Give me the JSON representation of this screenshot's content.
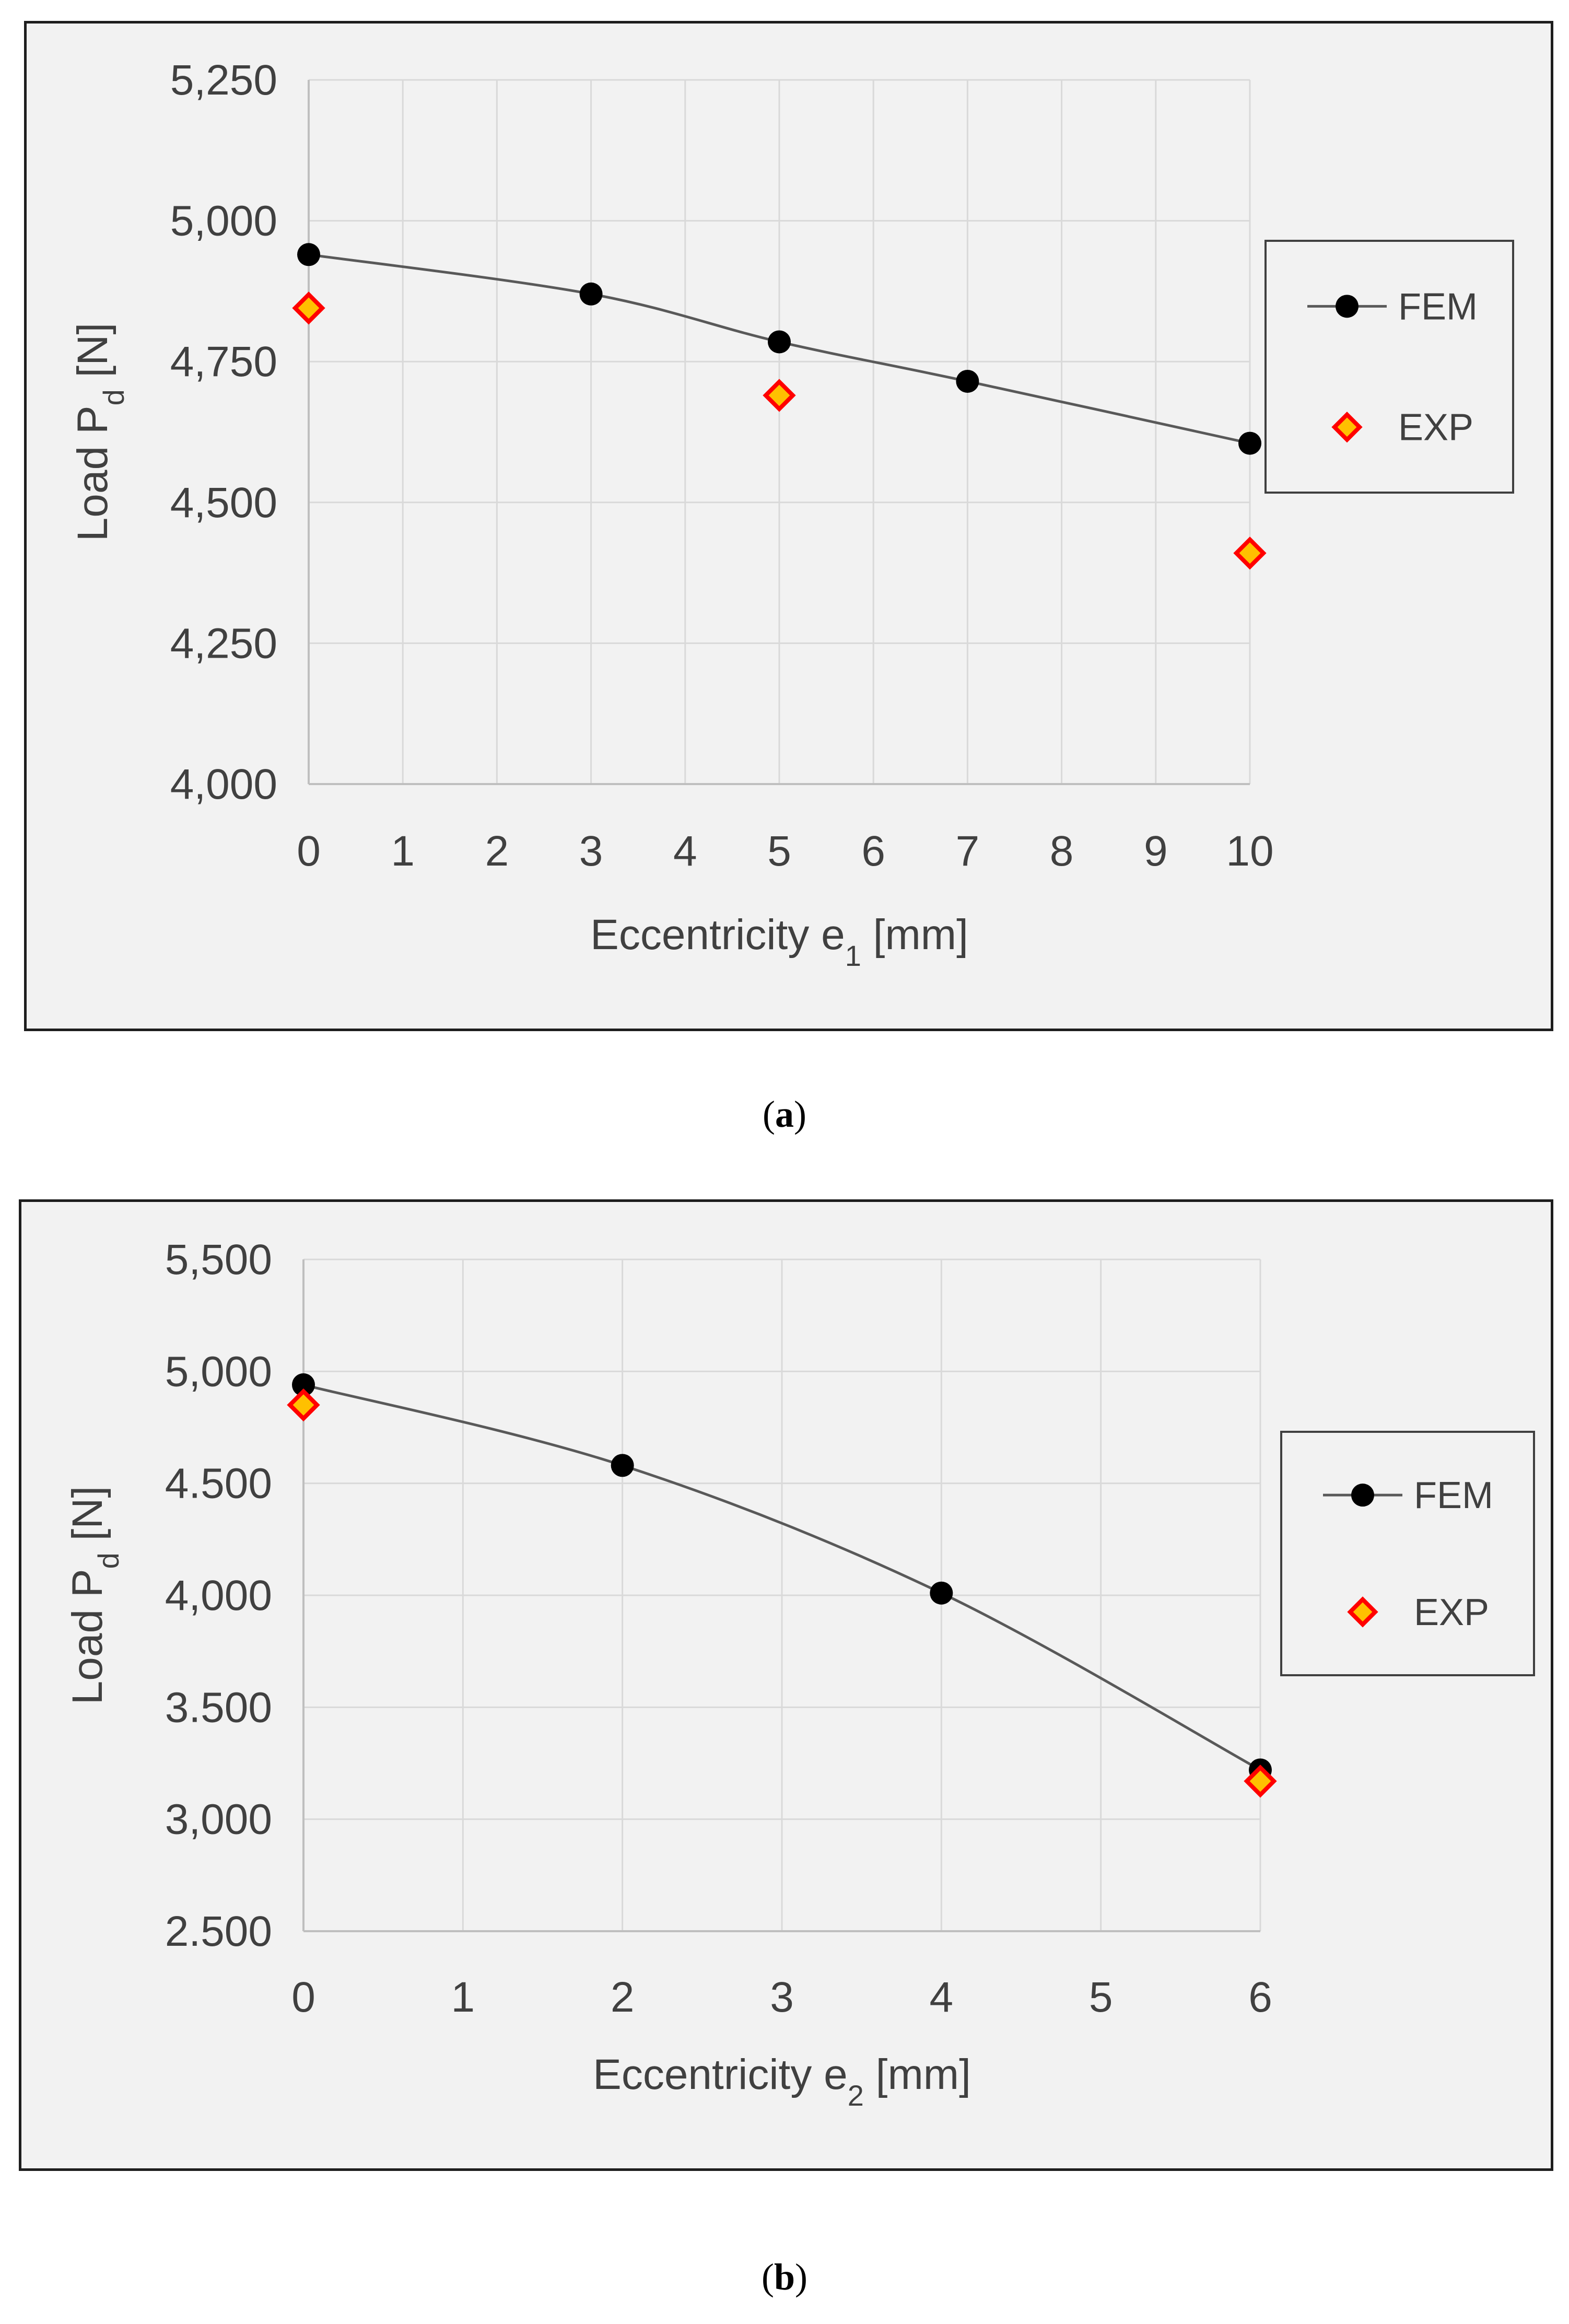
{
  "colors": {
    "fem_marker": "#000000",
    "fem_line": "#595959",
    "exp_fill": "#ffc000",
    "exp_stroke": "#ff0000",
    "grid": "#d9d9d9",
    "axis": "#bfbfbf",
    "text": "#404040"
  },
  "captions": {
    "a": {
      "open": "(",
      "letter": "a",
      "close": ")"
    },
    "b": {
      "open": "(",
      "letter": "b",
      "close": ")"
    }
  },
  "chart_data": [
    {
      "id": "a",
      "type": "scatter",
      "xlabel": {
        "main": "Eccentricity e",
        "sub": "1",
        "unit": " [mm]"
      },
      "ylabel": {
        "main": "Load P",
        "sub": "d",
        "unit": " [N]"
      },
      "xlim": [
        0,
        10
      ],
      "ylim": [
        4000,
        5250
      ],
      "x_ticks": [
        0,
        1,
        2,
        3,
        4,
        5,
        6,
        7,
        8,
        9,
        10
      ],
      "x_tick_labels": [
        "0",
        "1",
        "2",
        "3",
        "4",
        "5",
        "6",
        "7",
        "8",
        "9",
        "10"
      ],
      "y_ticks": [
        4000,
        4250,
        4500,
        4750,
        5000,
        5250
      ],
      "y_tick_labels": [
        "4,000",
        "4,250",
        "4,500",
        "4,750",
        "5,000",
        "5,250"
      ],
      "grid": true,
      "legend_position": "right",
      "series": [
        {
          "name": "FEM",
          "marker": "circle",
          "line": "smooth",
          "x": [
            0,
            3,
            5,
            7,
            10
          ],
          "y": [
            4940,
            4870,
            4785,
            4715,
            4605
          ]
        },
        {
          "name": "EXP",
          "marker": "diamond",
          "line": "none",
          "x": [
            0,
            5,
            10
          ],
          "y": [
            4845,
            4690,
            4410
          ]
        }
      ]
    },
    {
      "id": "b",
      "type": "scatter",
      "xlabel": {
        "main": "Eccentricity e",
        "sub": "2",
        "unit": " [mm]"
      },
      "ylabel": {
        "main": "Load P",
        "sub": "d",
        "unit": " [N]"
      },
      "xlim": [
        0,
        6
      ],
      "ylim": [
        2500,
        5500
      ],
      "x_ticks": [
        0,
        1,
        2,
        3,
        4,
        5,
        6
      ],
      "x_tick_labels": [
        "0",
        "1",
        "2",
        "3",
        "4",
        "5",
        "6"
      ],
      "y_ticks": [
        2500,
        3000,
        3500,
        4000,
        4500,
        5000,
        5500
      ],
      "y_tick_labels": [
        "2.500",
        "3,000",
        "3.500",
        "4,000",
        "4.500",
        "5,000",
        "5,500"
      ],
      "grid": true,
      "legend_position": "right",
      "series": [
        {
          "name": "FEM",
          "marker": "circle",
          "line": "smooth",
          "x": [
            0,
            2,
            4,
            6
          ],
          "y": [
            4940,
            4580,
            4010,
            3220
          ]
        },
        {
          "name": "EXP",
          "marker": "diamond",
          "line": "none",
          "x": [
            0,
            6
          ],
          "y": [
            4850,
            3170
          ]
        }
      ]
    }
  ]
}
